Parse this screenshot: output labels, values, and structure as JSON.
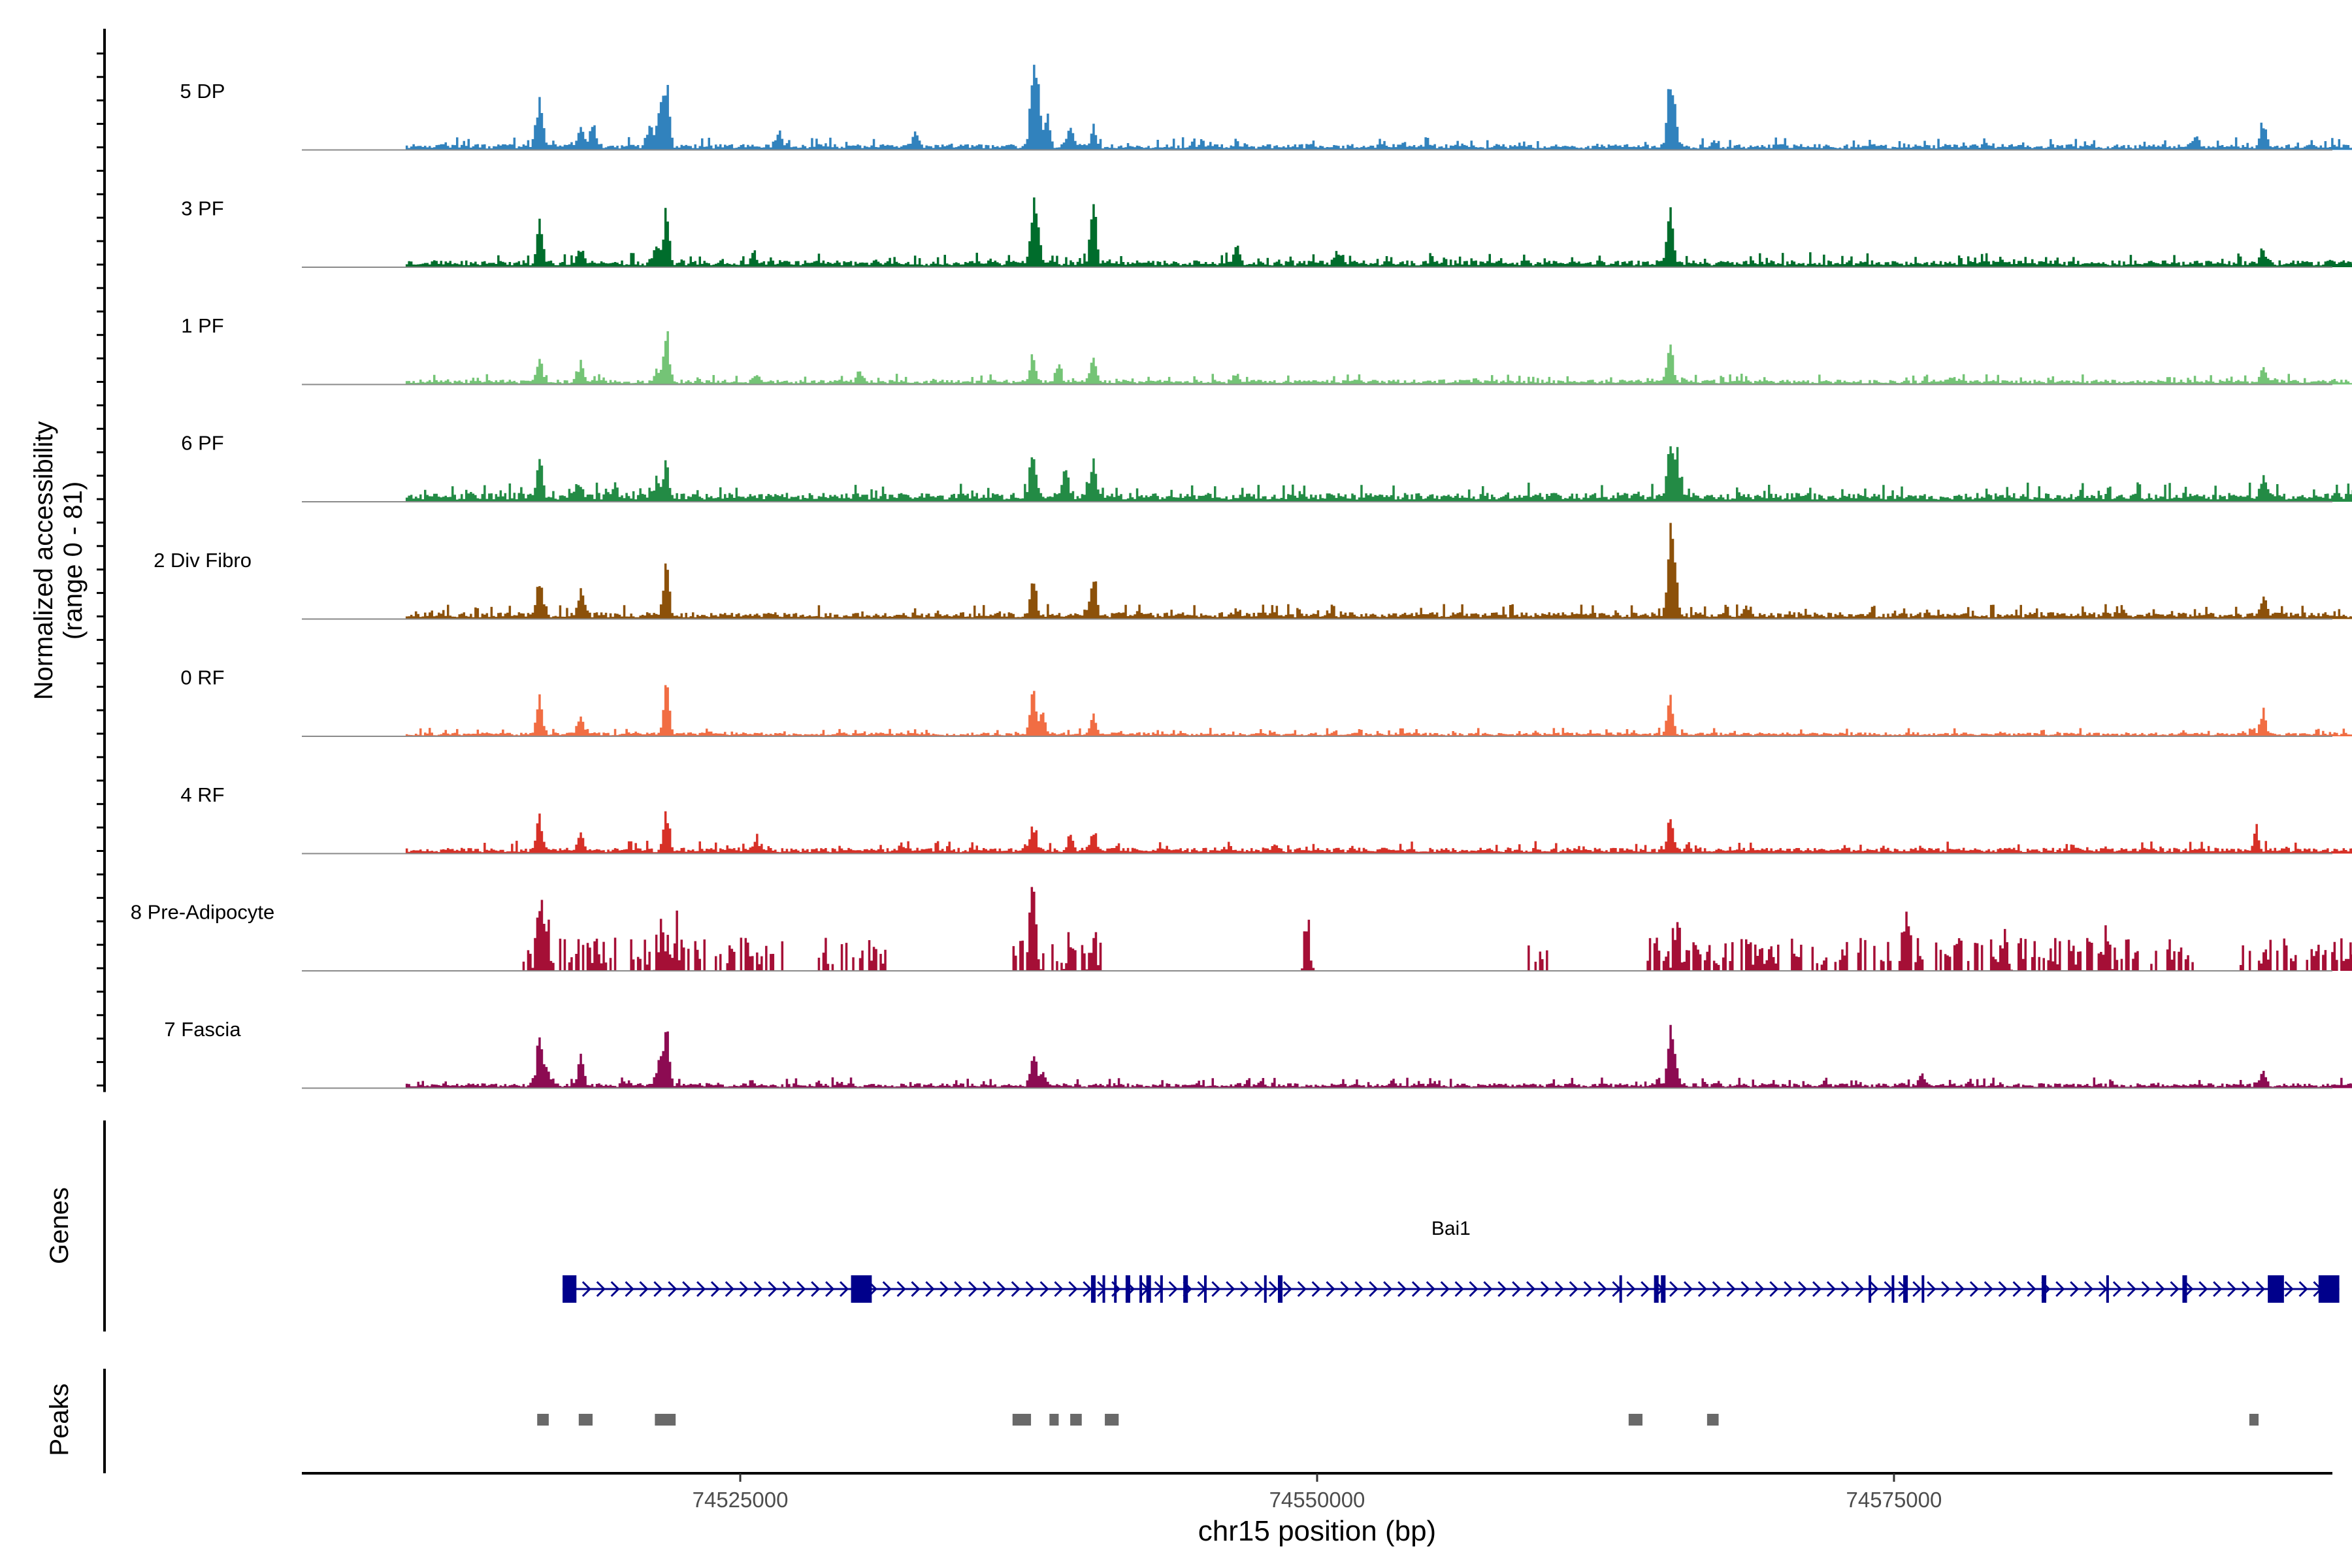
{
  "chart_data": {
    "type": "coverage",
    "title": "",
    "ylabel": "Normalized accessibility",
    "ylabel_range": "(range 0 - 81)",
    "y_range": [
      0,
      81
    ],
    "xlabel": "chr15 position (bp)",
    "x_range": [
      74506000,
      74594000
    ],
    "x_ticks": [
      {
        "value": 74525000,
        "label": "74525000"
      },
      {
        "value": 74550000,
        "label": "74550000"
      },
      {
        "value": 74575000,
        "label": "74575000"
      }
    ],
    "coverage_span": [
      74510500,
      74599800
    ],
    "tracks": [
      {
        "name": "5 DP",
        "color": "#3182bd",
        "peaks": [
          [
            74516300,
            0.5
          ],
          [
            74518100,
            0.24
          ],
          [
            74518600,
            0.22
          ],
          [
            74521800,
            0.65
          ],
          [
            74521500,
            0.42
          ],
          [
            74521100,
            0.22
          ],
          [
            74526700,
            0.18
          ],
          [
            74532600,
            0.13
          ],
          [
            74537700,
            0.72
          ],
          [
            74537900,
            0.5
          ],
          [
            74538300,
            0.3
          ],
          [
            74539300,
            0.23
          ],
          [
            74540300,
            0.18
          ],
          [
            74565300,
            0.62
          ],
          [
            74565500,
            0.3
          ],
          [
            74567200,
            0.06
          ],
          [
            74588100,
            0.12
          ],
          [
            74591000,
            0.2
          ]
        ],
        "noise": 0.06,
        "spiky": false
      },
      {
        "name": "3 PF",
        "color": "#006d2c",
        "peaks": [
          [
            74516300,
            0.45
          ],
          [
            74518100,
            0.15
          ],
          [
            74521800,
            0.52
          ],
          [
            74521400,
            0.2
          ],
          [
            74525600,
            0.12
          ],
          [
            74537700,
            0.52
          ],
          [
            74537900,
            0.3
          ],
          [
            74540300,
            0.72
          ],
          [
            74546500,
            0.18
          ],
          [
            74550900,
            0.12
          ],
          [
            74565300,
            0.6
          ],
          [
            74591000,
            0.14
          ]
        ],
        "noise": 0.07,
        "spiky": false
      },
      {
        "name": "1 PF",
        "color": "#74c476",
        "peaks": [
          [
            74516300,
            0.25
          ],
          [
            74518100,
            0.2
          ],
          [
            74521800,
            0.58
          ],
          [
            74521400,
            0.12
          ],
          [
            74525700,
            0.09
          ],
          [
            74530200,
            0.12
          ],
          [
            74537700,
            0.3
          ],
          [
            74538800,
            0.2
          ],
          [
            74540300,
            0.28
          ],
          [
            74546500,
            0.09
          ],
          [
            74565300,
            0.45
          ],
          [
            74577500,
            0.06
          ],
          [
            74591000,
            0.18
          ]
        ],
        "noise": 0.05,
        "spiky": false
      },
      {
        "name": "6 PF",
        "color": "#238b45",
        "peaks": [
          [
            74516300,
            0.42
          ],
          [
            74518000,
            0.14
          ],
          [
            74521800,
            0.36
          ],
          [
            74521400,
            0.2
          ],
          [
            74537700,
            0.45
          ],
          [
            74539100,
            0.35
          ],
          [
            74540300,
            0.42
          ],
          [
            74565300,
            0.62
          ],
          [
            74565600,
            0.35
          ],
          [
            74591000,
            0.22
          ]
        ],
        "noise": 0.09,
        "spiky": false
      },
      {
        "name": "2 Div Fibro",
        "color": "#8c510a",
        "peaks": [
          [
            74516300,
            0.36
          ],
          [
            74518100,
            0.3
          ],
          [
            74521800,
            0.52
          ],
          [
            74537700,
            0.38
          ],
          [
            74540300,
            0.43
          ],
          [
            74565300,
            0.72
          ],
          [
            74565500,
            0.45
          ],
          [
            74568600,
            0.1
          ],
          [
            74591000,
            0.22
          ]
        ],
        "noise": 0.07,
        "spiky": false
      },
      {
        "name": "0 RF",
        "color": "#f16d43",
        "peaks": [
          [
            74516300,
            0.38
          ],
          [
            74518100,
            0.22
          ],
          [
            74521800,
            0.55
          ],
          [
            74537700,
            0.45
          ],
          [
            74538100,
            0.22
          ],
          [
            74540300,
            0.18
          ],
          [
            74565300,
            0.42
          ],
          [
            74591000,
            0.24
          ]
        ],
        "noise": 0.04,
        "spiky": false
      },
      {
        "name": "4 RF",
        "color": "#d73027",
        "peaks": [
          [
            74516300,
            0.38
          ],
          [
            74518100,
            0.2
          ],
          [
            74521800,
            0.38
          ],
          [
            74525700,
            0.12
          ],
          [
            74537700,
            0.22
          ],
          [
            74539300,
            0.16
          ],
          [
            74540300,
            0.18
          ],
          [
            74565300,
            0.35
          ],
          [
            74590700,
            0.2
          ]
        ],
        "noise": 0.06,
        "spiky": false
      },
      {
        "name": "8 Pre-Adipocyte",
        "color": "#a50f36",
        "peaks": [
          [
            74516300,
            0.72
          ],
          [
            74516600,
            0.4
          ],
          [
            74521600,
            0.45
          ],
          [
            74522200,
            0.3
          ],
          [
            74537700,
            0.88
          ],
          [
            74539300,
            0.25
          ],
          [
            74540300,
            0.3
          ],
          [
            74549600,
            0.28
          ],
          [
            74565600,
            0.5
          ],
          [
            74575500,
            0.35
          ],
          [
            74579800,
            0.4
          ],
          [
            74584200,
            0.3
          ]
        ],
        "noise": 0.0,
        "spiky": true,
        "spike_ranges": [
          [
            74515500,
            74523500
          ],
          [
            74523800,
            74527000
          ],
          [
            74528200,
            74531300
          ],
          [
            74536800,
            74541200
          ],
          [
            74549400,
            74549800
          ],
          [
            74559000,
            74560000
          ],
          [
            74564300,
            74576500
          ],
          [
            74576800,
            74588200
          ],
          [
            74589800,
            74596000
          ]
        ]
      },
      {
        "name": "7 Fascia",
        "color": "#8c0b52",
        "peaks": [
          [
            74516300,
            0.52
          ],
          [
            74516600,
            0.22
          ],
          [
            74518100,
            0.3
          ],
          [
            74521800,
            0.6
          ],
          [
            74521500,
            0.22
          ],
          [
            74537700,
            0.35
          ],
          [
            74538100,
            0.15
          ],
          [
            74565300,
            0.55
          ],
          [
            74565500,
            0.3
          ],
          [
            74576200,
            0.12
          ],
          [
            74591000,
            0.16
          ]
        ],
        "noise": 0.05,
        "spiky": false
      }
    ],
    "genes_label": "Genes",
    "gene": {
      "name": "Bai1",
      "color": "#00008b",
      "start": 74517300,
      "end": 74594300,
      "strand": "+",
      "exons": [
        [
          74517300,
          74517900
        ],
        [
          74529800,
          74530700
        ],
        [
          74540200,
          74540400
        ],
        [
          74540700,
          74540800
        ],
        [
          74541200,
          74541300
        ],
        [
          74541700,
          74541900
        ],
        [
          74542300,
          74542400
        ],
        [
          74542600,
          74542800
        ],
        [
          74543200,
          74543300
        ],
        [
          74544200,
          74544400
        ],
        [
          74545100,
          74545200
        ],
        [
          74547700,
          74547800
        ],
        [
          74548300,
          74548500
        ],
        [
          74563100,
          74563200
        ],
        [
          74564600,
          74564800
        ],
        [
          74564900,
          74565100
        ],
        [
          74573900,
          74574000
        ],
        [
          74574900,
          74575000
        ],
        [
          74575400,
          74575600
        ],
        [
          74576200,
          74576300
        ],
        [
          74581400,
          74581600
        ],
        [
          74584200,
          74584300
        ],
        [
          74587500,
          74587700
        ],
        [
          74591200,
          74591900
        ],
        [
          74593400,
          74594300
        ]
      ]
    },
    "peaks_label": "Peaks",
    "peak_track": {
      "color": "#696969",
      "regions": [
        [
          74516200,
          74516700
        ],
        [
          74518000,
          74518600
        ],
        [
          74521300,
          74522200
        ],
        [
          74536800,
          74537600
        ],
        [
          74538400,
          74538800
        ],
        [
          74539300,
          74539800
        ],
        [
          74540800,
          74541400
        ],
        [
          74563500,
          74564100
        ],
        [
          74566900,
          74567400
        ],
        [
          74590400,
          74590800
        ]
      ]
    }
  }
}
